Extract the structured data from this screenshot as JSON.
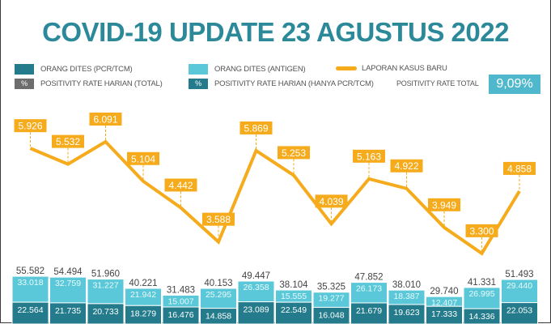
{
  "title": "COVID-19 UPDATE 23 AGUSTUS 2022",
  "legend": {
    "pcr": "ORANG DITES (PCR/TCM)",
    "antigen": "ORANG DITES (ANTIGEN)",
    "cases": "LAPORAN KASUS BARU",
    "pos_total": "POSITIVITY RATE HARIAN (TOTAL)",
    "pos_pcr": "POSITIVITY RATE HARIAN (HANYA PCR/TCM)",
    "pct_symbol": "%",
    "pos_rate_total_label": "POSITIVITY RATE TOTAL",
    "pos_rate_total_value": "9,09%"
  },
  "colors": {
    "title": "#2b8999",
    "pcr": "#237b8b",
    "antigen": "#5ac8d8",
    "cases": "#f5ab1b",
    "pos_total": "#6d6d6d"
  },
  "chart_data": {
    "type": "bar+line",
    "series": [
      {
        "name": "LAPORAN KASUS BARU",
        "type": "line",
        "values": [
          5926,
          5532,
          6091,
          5104,
          4442,
          3588,
          5869,
          5253,
          4039,
          5163,
          4922,
          3949,
          3300,
          4858
        ],
        "labels": [
          "5.926",
          "5.532",
          "6.091",
          "5.104",
          "4.442",
          "3.588",
          "5.869",
          "5.253",
          "4.039",
          "5.163",
          "4.922",
          "3.949",
          "3.300",
          "4.858"
        ]
      },
      {
        "name": "ORANG DITES (PCR/TCM)",
        "type": "stacked-bar",
        "values": [
          22564,
          21735,
          20733,
          18279,
          16476,
          14858,
          23089,
          22549,
          16048,
          21679,
          19623,
          17333,
          14336,
          22053
        ],
        "labels": [
          "22.564",
          "21.735",
          "20.733",
          "18.279",
          "16.476",
          "14.858",
          "23.089",
          "22.549",
          "16.048",
          "21.679",
          "19.623",
          "17.333",
          "14.336",
          "22.053"
        ]
      },
      {
        "name": "ORANG DITES (ANTIGEN)",
        "type": "stacked-bar",
        "values": [
          33018,
          32759,
          31227,
          21942,
          15007,
          25295,
          26358,
          15555,
          19277,
          26173,
          18387,
          12407,
          26995,
          29440
        ],
        "labels": [
          "33.018",
          "32.759",
          "31.227",
          "21.942",
          "15.007",
          "25.295",
          "26.358",
          "15.555",
          "19.277",
          "26.173",
          "18.387",
          "12.407",
          "26.995",
          "29.440"
        ]
      }
    ],
    "totals": [
      55582,
      54494,
      51960,
      40221,
      31483,
      40153,
      49447,
      38104,
      35325,
      47852,
      38010,
      29740,
      41331,
      51493
    ],
    "total_labels": [
      "55.582",
      "54.494",
      "51.960",
      "40.221",
      "31.483",
      "40.153",
      "49.447",
      "38.104",
      "35.325",
      "47.852",
      "38.010",
      "29.740",
      "41.331",
      "51.493"
    ]
  }
}
